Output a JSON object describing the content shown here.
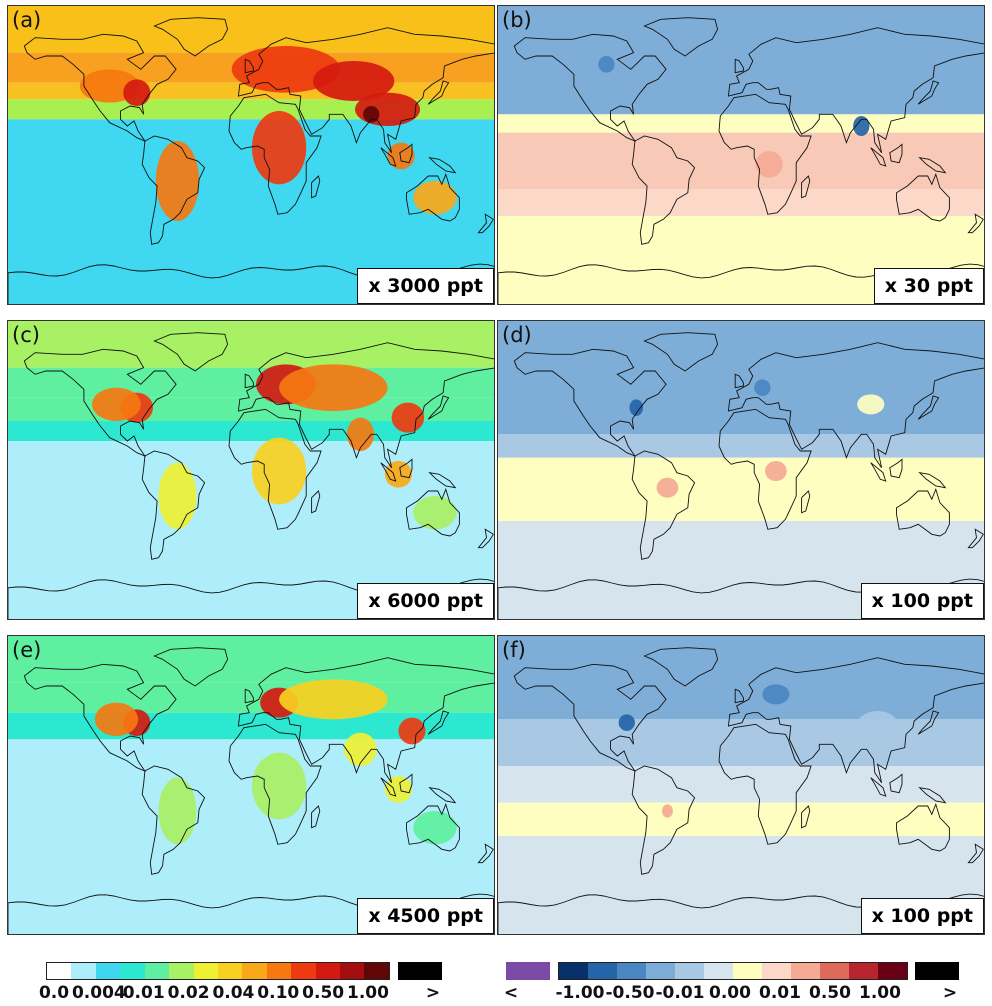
{
  "panels": [
    {
      "label": "(a)",
      "scale": "x 3000 ppt",
      "kind": "abs",
      "variant": 0
    },
    {
      "label": "(b)",
      "scale": "x 30 ppt",
      "kind": "diff",
      "variant": 0
    },
    {
      "label": "(c)",
      "scale": "x 6000 ppt",
      "kind": "abs",
      "variant": 1
    },
    {
      "label": "(d)",
      "scale": "x 100 ppt",
      "kind": "diff",
      "variant": 1
    },
    {
      "label": "(e)",
      "scale": "x 4500 ppt",
      "kind": "abs",
      "variant": 2
    },
    {
      "label": "(f)",
      "scale": "x 100 ppt",
      "kind": "diff",
      "variant": 2
    }
  ],
  "colorbar_abs": {
    "colors": [
      "#ffffff",
      "#aeeefa",
      "#3fd6f0",
      "#2ce8d0",
      "#5ef0a0",
      "#a8f064",
      "#eef034",
      "#f8d020",
      "#f8a818",
      "#f57810",
      "#ee3a10",
      "#d41a10",
      "#a50e0e",
      "#600606"
    ],
    "over_color": "#000000",
    "tick_labels": [
      "0.0",
      "0.004",
      "0.01",
      "0.02",
      "0.04",
      "0.10",
      "0.50",
      "1.00"
    ],
    "over_label": ">"
  },
  "colorbar_diff": {
    "under_color": "#7a4aa6",
    "colors": [
      "#08306b",
      "#2464a8",
      "#4a86c2",
      "#7eaed8",
      "#a8c8e4",
      "#d6e4ee",
      "#fefec0",
      "#fbd8c8",
      "#f4aa94",
      "#e06a5a",
      "#b8242e",
      "#6a0016"
    ],
    "over_color": "#000000",
    "tick_labels": [
      "-1.00",
      "-0.50",
      "-0.01",
      "0.00",
      "0.01",
      "0.50",
      "1.00"
    ],
    "under_label": "<",
    "over_label": ">"
  }
}
